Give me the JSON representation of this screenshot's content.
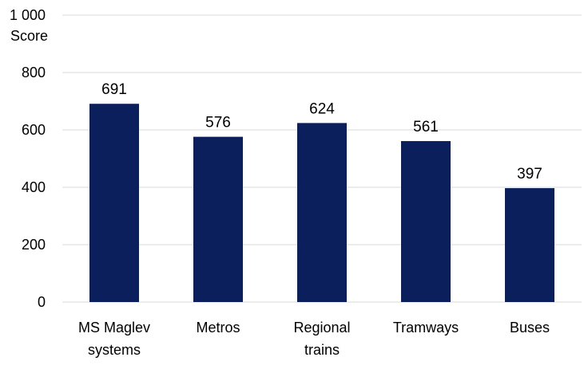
{
  "chart_data": {
    "type": "bar",
    "categories": [
      "MS Maglev systems",
      "Metros",
      "Regional trains",
      "Tramways",
      "Buses"
    ],
    "category_lines": [
      [
        "MS Maglev",
        "systems"
      ],
      [
        "Metros"
      ],
      [
        "Regional",
        "trains"
      ],
      [
        "Tramways"
      ],
      [
        "Buses"
      ]
    ],
    "values": [
      691,
      576,
      624,
      561,
      397
    ],
    "data_labels": [
      "691",
      "576",
      "624",
      "561",
      "397"
    ],
    "ylabel": "Score",
    "ylim": [
      0,
      1000
    ],
    "yticks": [
      0,
      200,
      400,
      600,
      800,
      1000
    ],
    "ytick_labels": [
      "0",
      "200",
      "400",
      "600",
      "800",
      "1 000"
    ],
    "grid": true,
    "legend": "none",
    "colors": {
      "bar": "#0b1f5c",
      "grid": "#d9d9d9",
      "text": "#000000"
    }
  }
}
